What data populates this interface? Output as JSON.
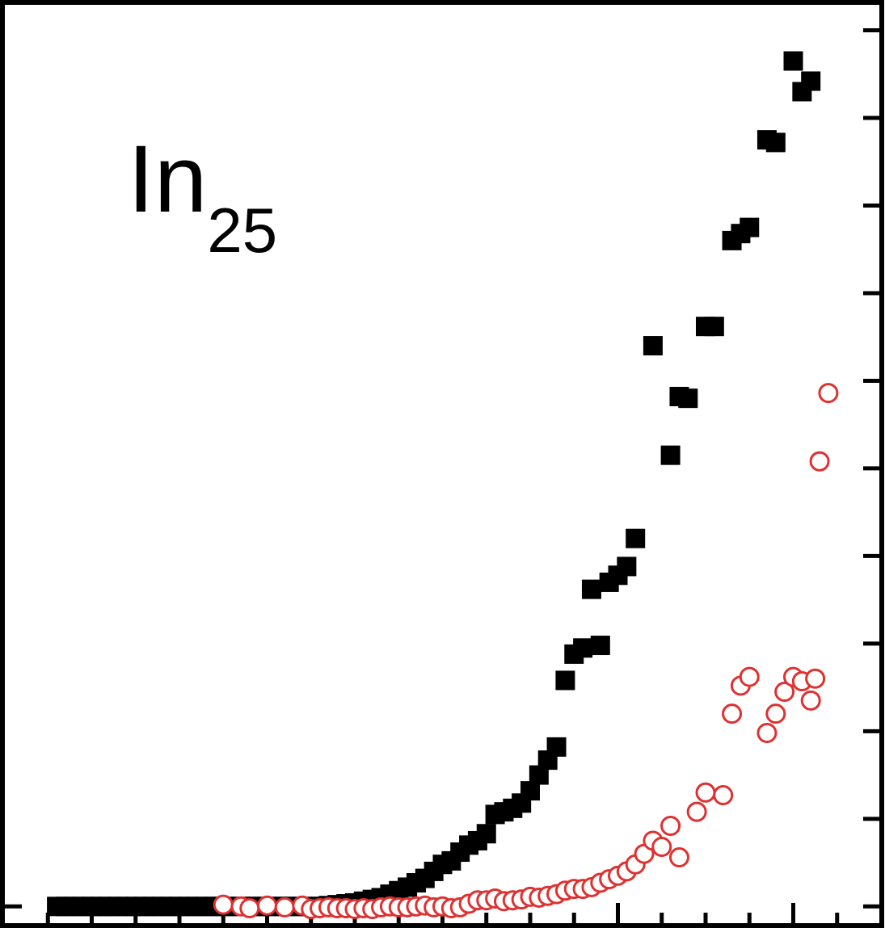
{
  "label": {
    "main": "In",
    "subscript": "25"
  },
  "colors": {
    "series_a": "#000000",
    "series_b": "#e03030",
    "axes": "#000000"
  },
  "chart_data": {
    "type": "scatter",
    "title": "",
    "xlabel": "",
    "ylabel": "",
    "xlim": [
      0,
      1.0
    ],
    "ylim": [
      -0.2,
      10.3
    ],
    "x_major_ticks": [
      0.1,
      0.3,
      0.5,
      0.7,
      0.9
    ],
    "x_minor_ticks": [
      0.05,
      0.15,
      0.2,
      0.25,
      0.35,
      0.4,
      0.45,
      0.55,
      0.6,
      0.65,
      0.75,
      0.8,
      0.85,
      0.95
    ],
    "y_ticks": [
      0,
      1,
      2,
      3,
      4,
      5,
      6,
      7,
      8,
      9,
      10
    ],
    "grid": false,
    "legend": "none",
    "annotation": "In25",
    "series": [
      {
        "marker": "filled-square",
        "color": "#000000",
        "points": [
          [
            0.06,
            0.0
          ],
          [
            0.07,
            0.0
          ],
          [
            0.08,
            0.0
          ],
          [
            0.09,
            0.0
          ],
          [
            0.1,
            0.0
          ],
          [
            0.11,
            0.0
          ],
          [
            0.12,
            0.0
          ],
          [
            0.13,
            0.0
          ],
          [
            0.14,
            0.0
          ],
          [
            0.15,
            0.0
          ],
          [
            0.16,
            0.0
          ],
          [
            0.17,
            0.0
          ],
          [
            0.18,
            0.0
          ],
          [
            0.19,
            0.0
          ],
          [
            0.2,
            0.0
          ],
          [
            0.21,
            0.0
          ],
          [
            0.22,
            0.0
          ],
          [
            0.23,
            0.0
          ],
          [
            0.24,
            0.0
          ],
          [
            0.25,
            0.0
          ],
          [
            0.26,
            0.0
          ],
          [
            0.27,
            0.0
          ],
          [
            0.28,
            0.0
          ],
          [
            0.29,
            0.0
          ],
          [
            0.3,
            0.0
          ],
          [
            0.31,
            0.0
          ],
          [
            0.32,
            0.0
          ],
          [
            0.33,
            0.0
          ],
          [
            0.34,
            0.0
          ],
          [
            0.35,
            0.0
          ],
          [
            0.36,
            0.0
          ],
          [
            0.37,
            0.01
          ],
          [
            0.38,
            0.02
          ],
          [
            0.39,
            0.03
          ],
          [
            0.4,
            0.04
          ],
          [
            0.41,
            0.06
          ],
          [
            0.42,
            0.08
          ],
          [
            0.43,
            0.1
          ],
          [
            0.44,
            0.14
          ],
          [
            0.45,
            0.18
          ],
          [
            0.46,
            0.22
          ],
          [
            0.47,
            0.27
          ],
          [
            0.48,
            0.32
          ],
          [
            0.49,
            0.4
          ],
          [
            0.5,
            0.48
          ],
          [
            0.51,
            0.52
          ],
          [
            0.52,
            0.62
          ],
          [
            0.53,
            0.7
          ],
          [
            0.54,
            0.75
          ],
          [
            0.55,
            0.83
          ],
          [
            0.56,
            1.05
          ],
          [
            0.57,
            1.08
          ],
          [
            0.58,
            1.12
          ],
          [
            0.59,
            1.18
          ],
          [
            0.6,
            1.32
          ],
          [
            0.61,
            1.5
          ],
          [
            0.62,
            1.67
          ],
          [
            0.63,
            1.82
          ],
          [
            0.64,
            2.58
          ],
          [
            0.65,
            2.88
          ],
          [
            0.66,
            2.95
          ],
          [
            0.67,
            3.62
          ],
          [
            0.68,
            2.98
          ],
          [
            0.69,
            3.7
          ],
          [
            0.7,
            3.78
          ],
          [
            0.71,
            3.88
          ],
          [
            0.72,
            4.2
          ],
          [
            0.74,
            6.4
          ],
          [
            0.76,
            5.15
          ],
          [
            0.77,
            5.82
          ],
          [
            0.78,
            5.8
          ],
          [
            0.8,
            6.62
          ],
          [
            0.81,
            6.62
          ],
          [
            0.83,
            7.6
          ],
          [
            0.84,
            7.68
          ],
          [
            0.85,
            7.75
          ],
          [
            0.87,
            8.75
          ],
          [
            0.88,
            8.72
          ],
          [
            0.9,
            9.65
          ],
          [
            0.91,
            9.3
          ],
          [
            0.92,
            9.42
          ]
        ]
      },
      {
        "marker": "open-circle",
        "color": "#e03030",
        "points": [
          [
            0.25,
            0.02
          ],
          [
            0.27,
            0.0
          ],
          [
            0.28,
            -0.02
          ],
          [
            0.3,
            0.01
          ],
          [
            0.32,
            -0.01
          ],
          [
            0.34,
            0.01
          ],
          [
            0.35,
            -0.03
          ],
          [
            0.36,
            -0.02
          ],
          [
            0.37,
            -0.01
          ],
          [
            0.38,
            -0.02
          ],
          [
            0.39,
            -0.02
          ],
          [
            0.4,
            -0.03
          ],
          [
            0.41,
            -0.02
          ],
          [
            0.42,
            -0.03
          ],
          [
            0.43,
            -0.01
          ],
          [
            0.44,
            0.0
          ],
          [
            0.45,
            -0.01
          ],
          [
            0.46,
            -0.01
          ],
          [
            0.47,
            0.0
          ],
          [
            0.48,
            0.01
          ],
          [
            0.49,
            -0.01
          ],
          [
            0.5,
            0.0
          ],
          [
            0.51,
            -0.02
          ],
          [
            0.52,
            -0.01
          ],
          [
            0.53,
            0.03
          ],
          [
            0.54,
            0.07
          ],
          [
            0.55,
            0.07
          ],
          [
            0.56,
            0.09
          ],
          [
            0.57,
            0.06
          ],
          [
            0.58,
            0.07
          ],
          [
            0.59,
            0.08
          ],
          [
            0.6,
            0.11
          ],
          [
            0.61,
            0.1
          ],
          [
            0.62,
            0.12
          ],
          [
            0.63,
            0.14
          ],
          [
            0.64,
            0.18
          ],
          [
            0.65,
            0.2
          ],
          [
            0.66,
            0.2
          ],
          [
            0.67,
            0.22
          ],
          [
            0.68,
            0.27
          ],
          [
            0.69,
            0.31
          ],
          [
            0.7,
            0.35
          ],
          [
            0.71,
            0.4
          ],
          [
            0.72,
            0.48
          ],
          [
            0.73,
            0.6
          ],
          [
            0.74,
            0.75
          ],
          [
            0.75,
            0.68
          ],
          [
            0.76,
            0.92
          ],
          [
            0.77,
            0.56
          ],
          [
            0.79,
            1.08
          ],
          [
            0.8,
            1.3
          ],
          [
            0.82,
            1.27
          ],
          [
            0.83,
            2.2
          ],
          [
            0.84,
            2.52
          ],
          [
            0.85,
            2.62
          ],
          [
            0.87,
            1.98
          ],
          [
            0.88,
            2.2
          ],
          [
            0.89,
            2.45
          ],
          [
            0.9,
            2.62
          ],
          [
            0.91,
            2.57
          ],
          [
            0.92,
            2.35
          ],
          [
            0.925,
            2.6
          ],
          [
            0.93,
            5.08
          ],
          [
            0.94,
            5.86
          ]
        ]
      }
    ]
  }
}
